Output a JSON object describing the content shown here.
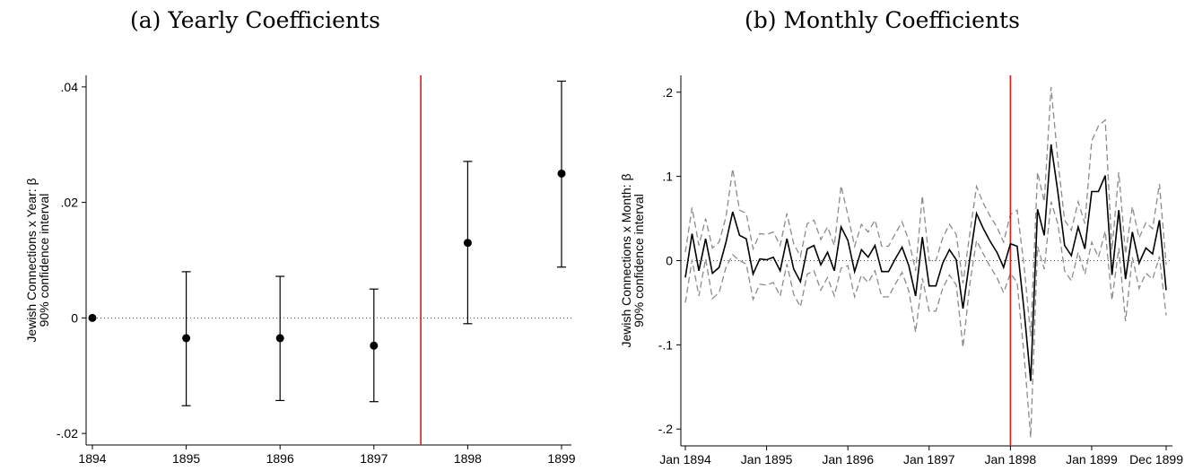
{
  "panels": {
    "a": {
      "title": "(a) Yearly Coefficients"
    },
    "b": {
      "title": "(b) Monthly Coefficients"
    }
  },
  "chart_data": [
    {
      "type": "scatter",
      "title": "(a) Yearly Coefficients",
      "xlabel": "",
      "ylabel": [
        "Jewish Connections x Year: β",
        "90% confidence interval"
      ],
      "x": [
        1894,
        1895,
        1896,
        1897,
        1898,
        1899
      ],
      "x_tick_labels": [
        "1894",
        "1895",
        "1896",
        "1897",
        "1898",
        "1899"
      ],
      "series": [
        {
          "values": [
            0,
            -0.0035,
            -0.0035,
            -0.0048,
            0.013,
            0.025
          ],
          "ci_lower": [
            0,
            -0.0152,
            -0.0143,
            -0.0145,
            -0.001,
            0.0088
          ],
          "ci_upper": [
            0,
            0.008,
            0.0072,
            0.005,
            0.0271,
            0.041
          ]
        }
      ],
      "xlim": [
        1894,
        1899
      ],
      "ylim": [
        -0.022,
        0.042
      ],
      "y_ticks": [
        -0.02,
        0,
        0.02,
        0.04
      ],
      "y_tick_labels": [
        "-.02",
        "0",
        ".02",
        ".04"
      ],
      "reference_line_y": 0,
      "vertical_line_x": 1897.5,
      "vertical_line_color": "#e41a1c",
      "grid": false,
      "legend": "none"
    },
    {
      "type": "line",
      "title": "(b) Monthly Coefficients",
      "xlabel": "",
      "ylabel": [
        "Jewish Connections x Month: β",
        "90% confidence interval"
      ],
      "x_ticks": [
        0,
        12,
        24,
        36,
        48,
        60,
        71
      ],
      "x_tick_labels": [
        "Jan 1894",
        "Jan 1895",
        "Jan 1896",
        "Jan 1897",
        "Jan 1898",
        "Jan 1899",
        "Dec 1899"
      ],
      "series": [
        {
          "name": "coefficient",
          "values": [
            -0.02,
            0.032,
            -0.012,
            0.026,
            -0.015,
            -0.008,
            0.022,
            0.058,
            0.03,
            0.026,
            -0.016,
            0.002,
            0.001,
            0.004,
            -0.012,
            0.026,
            -0.01,
            -0.025,
            0.014,
            0.018,
            -0.005,
            0.01,
            -0.012,
            0.04,
            0.024,
            -0.013,
            0.013,
            0.004,
            0.018,
            -0.013,
            -0.013,
            0.002,
            0.016,
            -0.006,
            -0.042,
            0.028,
            -0.03,
            -0.03,
            -0.003,
            0.013,
            0.001,
            -0.057,
            0.002,
            0.056,
            0.038,
            0.023,
            0.01,
            -0.008,
            0.02,
            0.017,
            -0.058,
            -0.143,
            0.061,
            0.03,
            0.138,
            0.082,
            0.018,
            0.006,
            0.04,
            0.014,
            0.082,
            0.082,
            0.101,
            -0.017,
            0.06,
            -0.022,
            0.034,
            -0.003,
            0.015,
            0.008,
            0.048,
            -0.035
          ]
        },
        {
          "name": "ci_upper",
          "values": [
            0.01,
            0.063,
            0.018,
            0.05,
            0.015,
            0.022,
            0.052,
            0.109,
            0.06,
            0.056,
            0.014,
            0.032,
            0.031,
            0.034,
            0.018,
            0.056,
            0.02,
            0.005,
            0.044,
            0.048,
            0.025,
            0.04,
            0.018,
            0.089,
            0.054,
            0.017,
            0.043,
            0.034,
            0.048,
            0.017,
            0.017,
            0.032,
            0.046,
            0.024,
            -0.012,
            0.077,
            0.0,
            0.0,
            0.027,
            0.043,
            0.031,
            -0.027,
            0.032,
            0.088,
            0.068,
            0.053,
            0.04,
            0.022,
            0.055,
            0.06,
            -0.005,
            -0.09,
            0.105,
            0.07,
            0.206,
            0.12,
            0.048,
            0.036,
            0.07,
            0.044,
            0.142,
            0.16,
            0.167,
            0.013,
            0.105,
            0.008,
            0.064,
            0.027,
            0.045,
            0.038,
            0.091,
            -0.005
          ]
        },
        {
          "name": "ci_lower",
          "values": [
            -0.05,
            0.001,
            -0.042,
            0.002,
            -0.045,
            -0.038,
            -0.008,
            0.007,
            0.0,
            -0.004,
            -0.046,
            -0.028,
            -0.029,
            -0.026,
            -0.042,
            -0.004,
            -0.04,
            -0.055,
            -0.016,
            -0.012,
            -0.035,
            -0.02,
            -0.042,
            -0.009,
            -0.006,
            -0.043,
            -0.017,
            -0.026,
            -0.012,
            -0.043,
            -0.043,
            -0.028,
            -0.014,
            -0.036,
            -0.085,
            -0.021,
            -0.06,
            -0.06,
            -0.033,
            -0.017,
            -0.029,
            -0.103,
            -0.028,
            0.024,
            0.008,
            -0.007,
            -0.02,
            -0.038,
            -0.015,
            -0.026,
            -0.111,
            -0.21,
            0.017,
            -0.01,
            0.07,
            0.044,
            -0.012,
            -0.024,
            0.01,
            -0.016,
            0.022,
            0.004,
            0.035,
            -0.047,
            0.015,
            -0.072,
            0.004,
            -0.033,
            -0.015,
            -0.022,
            0.005,
            -0.065
          ]
        }
      ],
      "ylim": [
        -0.22,
        0.22
      ],
      "y_ticks": [
        -0.2,
        -0.1,
        0,
        0.1,
        0.2
      ],
      "y_tick_labels": [
        "-.2",
        "-.1",
        "0",
        ".1",
        ".2"
      ],
      "reference_line_y": 0,
      "vertical_line_x": 48,
      "vertical_line_color": "#e41a1c",
      "grid": false,
      "legend": "none"
    }
  ]
}
